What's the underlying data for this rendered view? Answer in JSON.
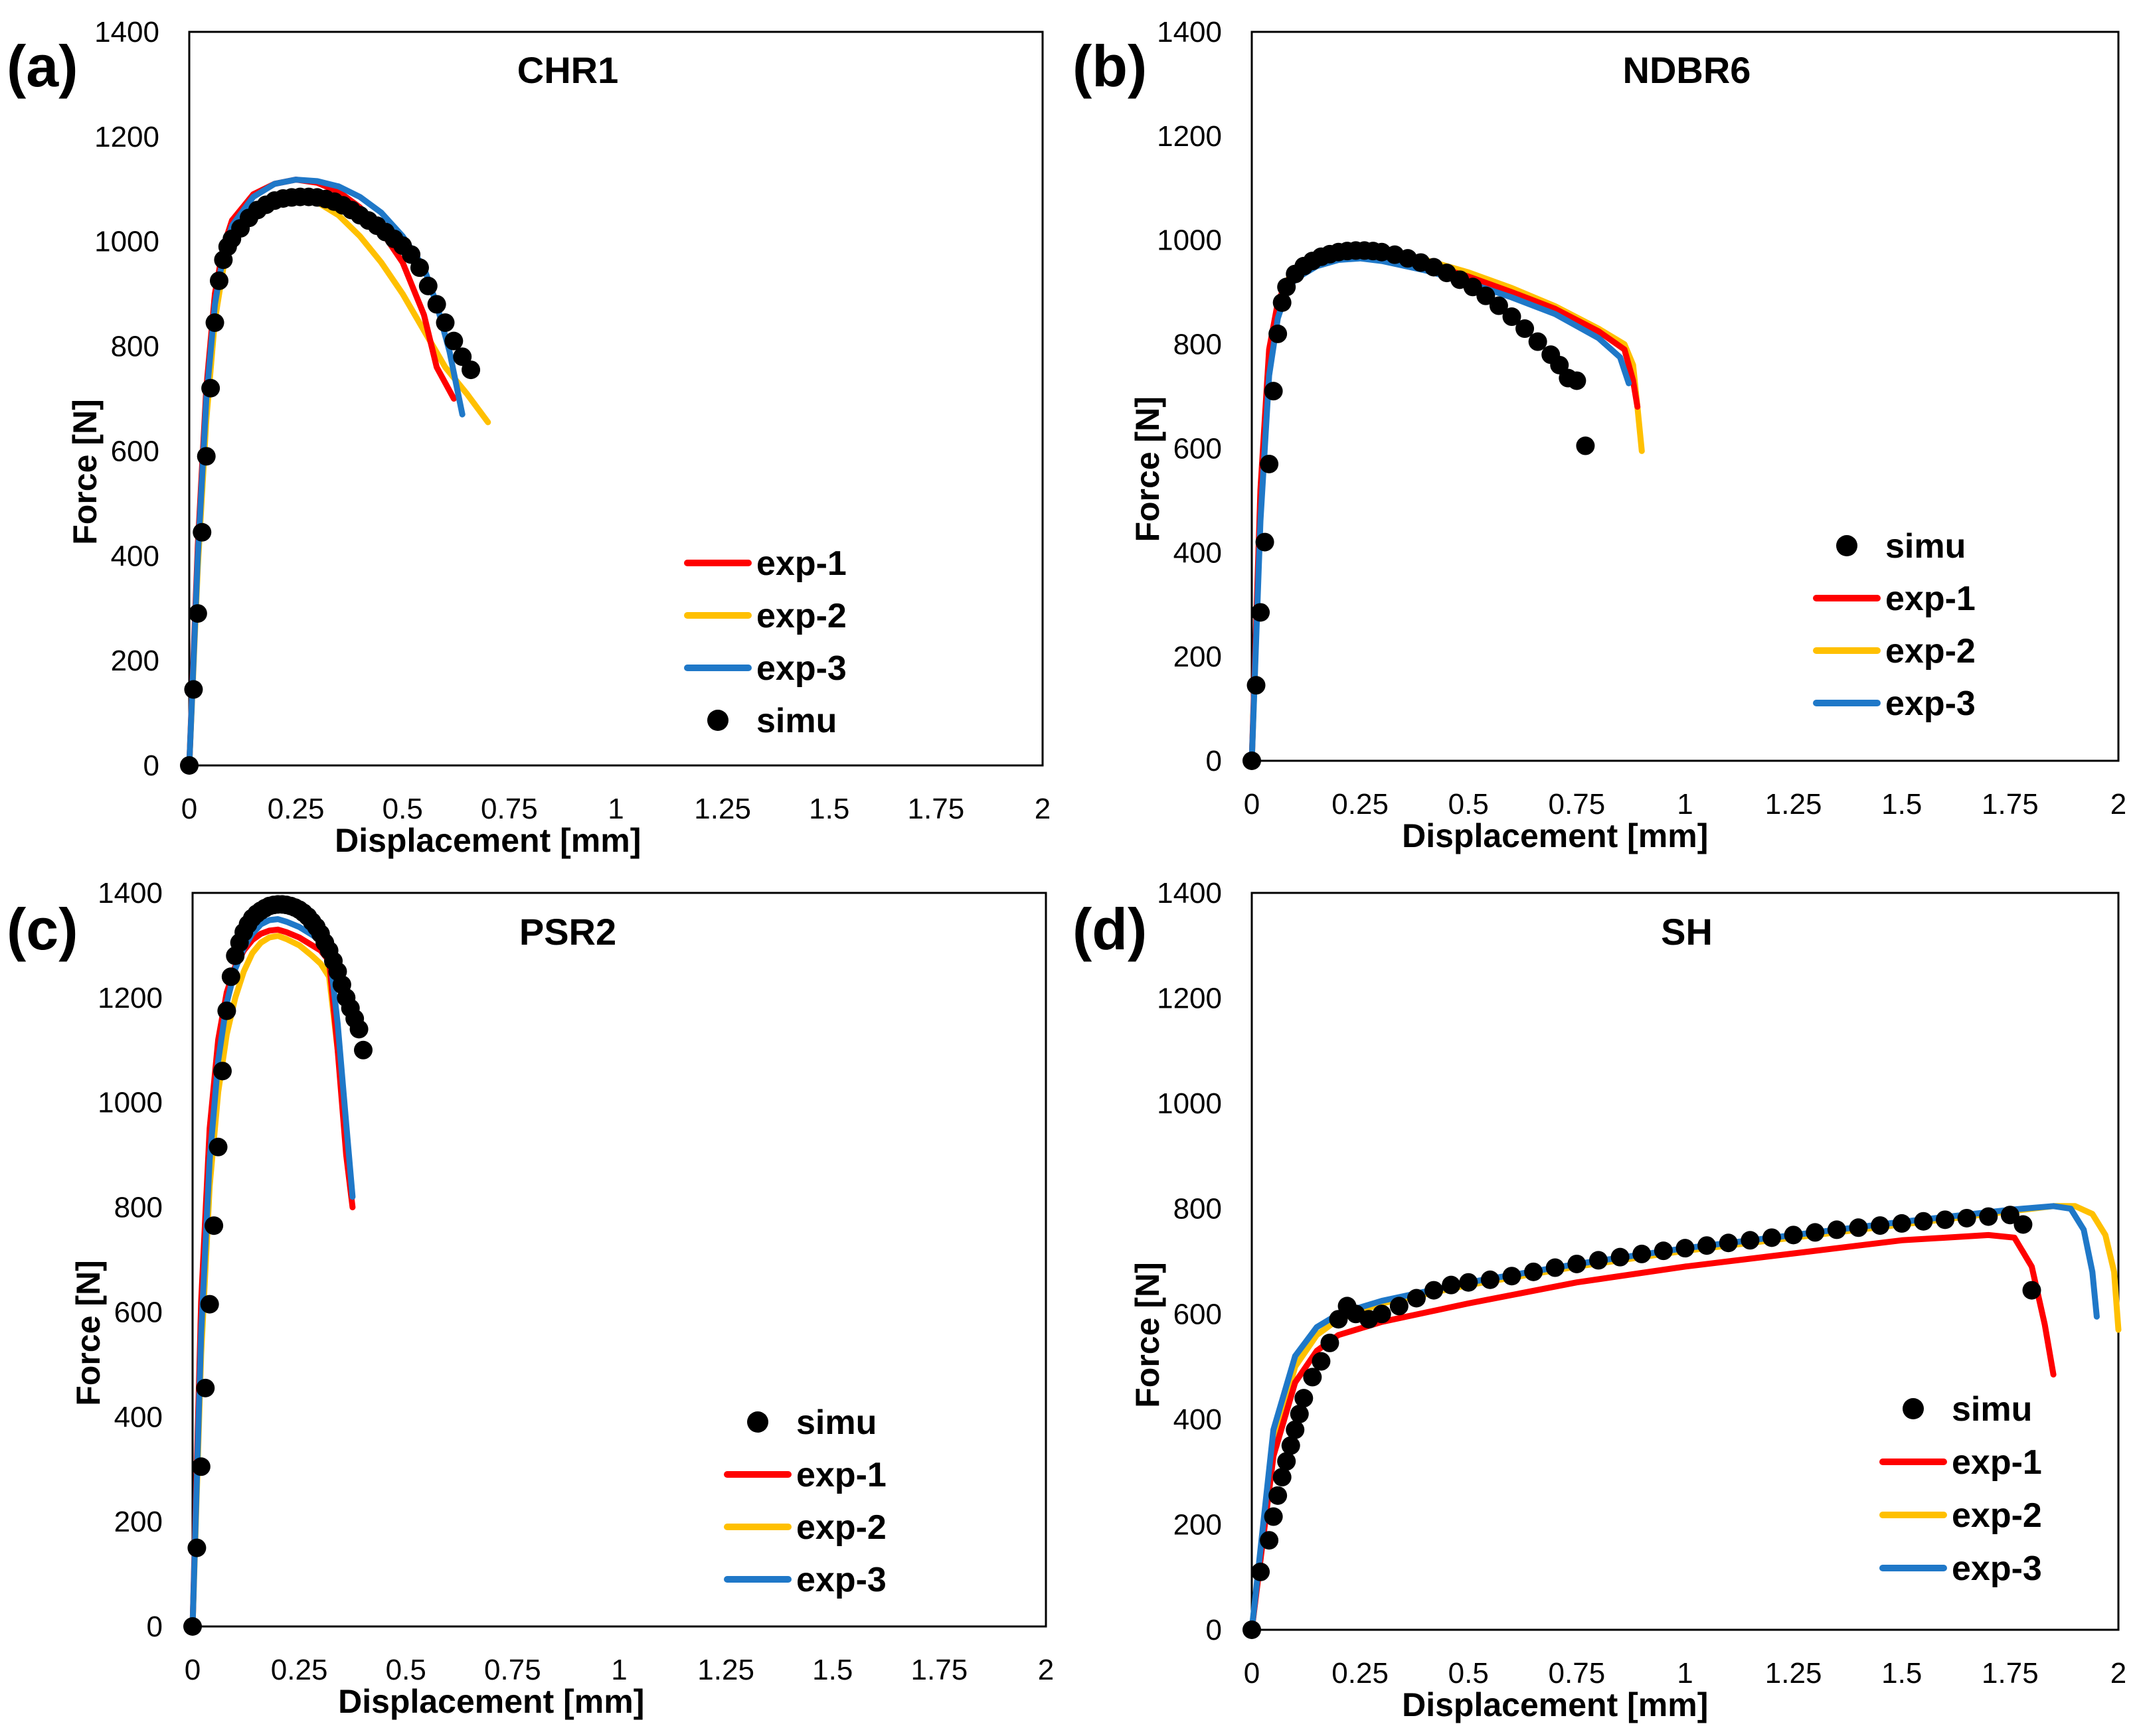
{
  "figure": {
    "series_colors": {
      "simu": "#000000",
      "exp-1": "#ff0000",
      "exp-2": "#ffc000",
      "exp-3": "#1f78c8"
    }
  },
  "chart_data": [
    {
      "panel_label": "(a)",
      "type": "scatter+line",
      "title": "CHR1",
      "xlabel": "Displacement [mm]",
      "ylabel": "Force [N]",
      "xlim": [
        0,
        2
      ],
      "ylim": [
        0,
        1400
      ],
      "xticks": [
        "0",
        "0.25",
        "0.5",
        "0.75",
        "1",
        "1.25",
        "1.5",
        "1.75",
        "2"
      ],
      "yticks": [
        "0",
        "200",
        "400",
        "600",
        "800",
        "1000",
        "1200",
        "1400"
      ],
      "legend_order": [
        "exp-1",
        "exp-2",
        "exp-3",
        "simu"
      ],
      "legend_position": "bottom-right",
      "series": [
        {
          "name": "exp-1",
          "kind": "line",
          "color": "#ff0000",
          "x": [
            0,
            0.02,
            0.04,
            0.06,
            0.08,
            0.1,
            0.15,
            0.2,
            0.25,
            0.3,
            0.35,
            0.4,
            0.45,
            0.5,
            0.55,
            0.58,
            0.62
          ],
          "y": [
            0,
            420,
            720,
            900,
            990,
            1040,
            1090,
            1110,
            1118,
            1112,
            1095,
            1065,
            1020,
            960,
            860,
            760,
            700
          ]
        },
        {
          "name": "exp-2",
          "kind": "line",
          "color": "#ffc000",
          "x": [
            0,
            0.02,
            0.04,
            0.06,
            0.08,
            0.1,
            0.15,
            0.2,
            0.25,
            0.3,
            0.35,
            0.4,
            0.45,
            0.5,
            0.55,
            0.6,
            0.65,
            0.7
          ],
          "y": [
            0,
            380,
            660,
            850,
            950,
            1010,
            1065,
            1085,
            1088,
            1075,
            1050,
            1010,
            960,
            900,
            830,
            760,
            710,
            655
          ]
        },
        {
          "name": "exp-3",
          "kind": "line",
          "color": "#1f78c8",
          "x": [
            0,
            0.02,
            0.04,
            0.06,
            0.08,
            0.1,
            0.15,
            0.2,
            0.25,
            0.3,
            0.35,
            0.4,
            0.45,
            0.5,
            0.55,
            0.58,
            0.61,
            0.64
          ],
          "y": [
            0,
            400,
            700,
            880,
            975,
            1030,
            1085,
            1110,
            1118,
            1115,
            1105,
            1085,
            1055,
            1010,
            950,
            880,
            790,
            670
          ]
        },
        {
          "name": "simu",
          "kind": "scatter",
          "color": "#000000",
          "x": [
            0,
            0.01,
            0.02,
            0.03,
            0.04,
            0.05,
            0.06,
            0.07,
            0.08,
            0.09,
            0.1,
            0.12,
            0.14,
            0.16,
            0.18,
            0.2,
            0.22,
            0.24,
            0.26,
            0.28,
            0.3,
            0.32,
            0.34,
            0.36,
            0.38,
            0.4,
            0.42,
            0.44,
            0.46,
            0.48,
            0.5,
            0.52,
            0.54,
            0.56,
            0.58,
            0.6,
            0.62,
            0.64,
            0.66
          ],
          "y": [
            0,
            145,
            290,
            445,
            590,
            720,
            845,
            925,
            965,
            990,
            1005,
            1025,
            1045,
            1060,
            1070,
            1078,
            1082,
            1084,
            1085,
            1085,
            1084,
            1081,
            1076,
            1069,
            1060,
            1050,
            1040,
            1030,
            1018,
            1005,
            992,
            975,
            950,
            915,
            880,
            845,
            810,
            780,
            755
          ]
        }
      ]
    },
    {
      "panel_label": "(b)",
      "type": "scatter+line",
      "title": "NDBR6",
      "xlabel": "Displacement [mm]",
      "ylabel": "Force [N]",
      "xlim": [
        0,
        2
      ],
      "ylim": [
        0,
        1400
      ],
      "xticks": [
        "0",
        "0.25",
        "0.5",
        "0.75",
        "1",
        "1.25",
        "1.5",
        "1.75",
        "2"
      ],
      "yticks": [
        "0",
        "200",
        "400",
        "600",
        "800",
        "1000",
        "1200",
        "1400"
      ],
      "legend_order": [
        "simu",
        "exp-1",
        "exp-2",
        "exp-3"
      ],
      "legend_position": "bottom-right",
      "series": [
        {
          "name": "exp-1",
          "kind": "line",
          "color": "#ff0000",
          "x": [
            0,
            0.02,
            0.04,
            0.06,
            0.08,
            0.1,
            0.15,
            0.2,
            0.25,
            0.3,
            0.4,
            0.5,
            0.6,
            0.7,
            0.8,
            0.86,
            0.88,
            0.89
          ],
          "y": [
            0,
            520,
            790,
            880,
            920,
            940,
            962,
            972,
            975,
            972,
            955,
            930,
            900,
            868,
            825,
            790,
            730,
            680
          ]
        },
        {
          "name": "exp-2",
          "kind": "line",
          "color": "#ffc000",
          "x": [
            0,
            0.02,
            0.04,
            0.06,
            0.08,
            0.1,
            0.15,
            0.2,
            0.25,
            0.3,
            0.4,
            0.5,
            0.6,
            0.7,
            0.8,
            0.86,
            0.88,
            0.89,
            0.9
          ],
          "y": [
            0,
            480,
            760,
            870,
            920,
            945,
            970,
            982,
            985,
            980,
            962,
            938,
            908,
            873,
            830,
            800,
            760,
            680,
            595
          ]
        },
        {
          "name": "exp-3",
          "kind": "line",
          "color": "#1f78c8",
          "x": [
            0,
            0.02,
            0.04,
            0.06,
            0.08,
            0.1,
            0.15,
            0.2,
            0.25,
            0.3,
            0.4,
            0.5,
            0.6,
            0.7,
            0.8,
            0.85,
            0.87
          ],
          "y": [
            0,
            460,
            740,
            850,
            900,
            925,
            950,
            962,
            965,
            960,
            942,
            918,
            890,
            858,
            812,
            775,
            725
          ]
        },
        {
          "name": "simu",
          "kind": "scatter",
          "color": "#000000",
          "x": [
            0,
            0.01,
            0.02,
            0.03,
            0.04,
            0.05,
            0.06,
            0.07,
            0.08,
            0.1,
            0.12,
            0.14,
            0.16,
            0.18,
            0.2,
            0.22,
            0.24,
            0.26,
            0.28,
            0.3,
            0.33,
            0.36,
            0.39,
            0.42,
            0.45,
            0.48,
            0.51,
            0.54,
            0.57,
            0.6,
            0.63,
            0.66,
            0.69,
            0.71,
            0.73,
            0.75,
            0.77
          ],
          "y": [
            0,
            145,
            285,
            420,
            570,
            710,
            820,
            880,
            910,
            935,
            950,
            960,
            968,
            973,
            977,
            979,
            980,
            980,
            979,
            977,
            972,
            965,
            957,
            948,
            937,
            924,
            910,
            893,
            874,
            853,
            830,
            805,
            780,
            760,
            735,
            730,
            605
          ]
        }
      ]
    },
    {
      "panel_label": "(c)",
      "type": "scatter+line",
      "title": "PSR2",
      "xlabel": "Displacement [mm]",
      "ylabel": "Force [N]",
      "xlim": [
        0,
        2
      ],
      "ylim": [
        0,
        1400
      ],
      "xticks": [
        "0",
        "0.25",
        "0.5",
        "0.75",
        "1",
        "1.25",
        "1.5",
        "1.75",
        "2"
      ],
      "yticks": [
        "0",
        "200",
        "400",
        "600",
        "800",
        "1000",
        "1200",
        "1400"
      ],
      "legend_order": [
        "simu",
        "exp-1",
        "exp-2",
        "exp-3"
      ],
      "legend_position": "bottom-right",
      "series": [
        {
          "name": "exp-1",
          "kind": "line",
          "color": "#ff0000",
          "x": [
            0,
            0.02,
            0.04,
            0.06,
            0.08,
            0.1,
            0.12,
            0.14,
            0.16,
            0.18,
            0.2,
            0.22,
            0.25,
            0.28,
            0.3,
            0.32,
            0.34,
            0.36,
            0.375
          ],
          "y": [
            0,
            620,
            950,
            1120,
            1210,
            1260,
            1290,
            1310,
            1322,
            1328,
            1330,
            1325,
            1315,
            1300,
            1290,
            1270,
            1100,
            900,
            800
          ]
        },
        {
          "name": "exp-2",
          "kind": "line",
          "color": "#ffc000",
          "x": [
            0,
            0.02,
            0.04,
            0.06,
            0.08,
            0.1,
            0.12,
            0.14,
            0.16,
            0.18,
            0.2,
            0.22,
            0.25,
            0.28,
            0.3,
            0.32,
            0.34,
            0.36,
            0.37
          ],
          "y": [
            0,
            520,
            840,
            1020,
            1130,
            1200,
            1250,
            1285,
            1305,
            1315,
            1318,
            1312,
            1300,
            1280,
            1265,
            1240,
            1100,
            950,
            850
          ]
        },
        {
          "name": "exp-3",
          "kind": "line",
          "color": "#1f78c8",
          "x": [
            0,
            0.02,
            0.04,
            0.06,
            0.08,
            0.1,
            0.12,
            0.14,
            0.16,
            0.18,
            0.2,
            0.22,
            0.25,
            0.28,
            0.3,
            0.32,
            0.34,
            0.36,
            0.375
          ],
          "y": [
            0,
            560,
            890,
            1080,
            1190,
            1255,
            1295,
            1322,
            1340,
            1348,
            1350,
            1345,
            1335,
            1320,
            1308,
            1295,
            1150,
            960,
            820
          ]
        },
        {
          "name": "simu",
          "kind": "scatter",
          "color": "#000000",
          "x": [
            0,
            0.01,
            0.02,
            0.03,
            0.04,
            0.05,
            0.06,
            0.07,
            0.08,
            0.09,
            0.1,
            0.11,
            0.12,
            0.13,
            0.14,
            0.15,
            0.16,
            0.17,
            0.18,
            0.19,
            0.2,
            0.21,
            0.22,
            0.23,
            0.24,
            0.25,
            0.26,
            0.27,
            0.28,
            0.29,
            0.3,
            0.31,
            0.32,
            0.33,
            0.34,
            0.35,
            0.36,
            0.37,
            0.38,
            0.39,
            0.4
          ],
          "y": [
            0,
            150,
            305,
            455,
            615,
            765,
            915,
            1060,
            1175,
            1240,
            1280,
            1305,
            1325,
            1340,
            1352,
            1360,
            1366,
            1371,
            1375,
            1377,
            1378,
            1378,
            1377,
            1375,
            1372,
            1368,
            1362,
            1355,
            1345,
            1335,
            1322,
            1305,
            1290,
            1270,
            1250,
            1225,
            1200,
            1180,
            1160,
            1140,
            1100
          ]
        }
      ]
    },
    {
      "panel_label": "(d)",
      "type": "scatter+line",
      "title": "SH",
      "xlabel": "Displacement [mm]",
      "ylabel": "Force [N]",
      "xlim": [
        0,
        2
      ],
      "ylim": [
        0,
        1400
      ],
      "xticks": [
        "0",
        "0.25",
        "0.5",
        "0.75",
        "1",
        "1.25",
        "1.5",
        "1.75",
        "2"
      ],
      "yticks": [
        "0",
        "200",
        "400",
        "600",
        "800",
        "1000",
        "1200",
        "1400"
      ],
      "legend_order": [
        "simu",
        "exp-1",
        "exp-2",
        "exp-3"
      ],
      "legend_position": "bottom-right",
      "series": [
        {
          "name": "exp-1",
          "kind": "line",
          "color": "#ff0000",
          "x": [
            0,
            0.05,
            0.1,
            0.15,
            0.2,
            0.3,
            0.5,
            0.75,
            1,
            1.25,
            1.5,
            1.7,
            1.76,
            1.8,
            1.83,
            1.85
          ],
          "y": [
            0,
            330,
            470,
            530,
            560,
            585,
            620,
            660,
            690,
            715,
            740,
            750,
            745,
            690,
            580,
            485
          ]
        },
        {
          "name": "exp-2",
          "kind": "line",
          "color": "#ffc000",
          "x": [
            0,
            0.05,
            0.1,
            0.15,
            0.2,
            0.3,
            0.5,
            0.75,
            1,
            1.25,
            1.5,
            1.75,
            1.85,
            1.9,
            1.94,
            1.97,
            1.99,
            2.0
          ],
          "y": [
            0,
            350,
            500,
            560,
            590,
            620,
            655,
            690,
            720,
            745,
            770,
            795,
            805,
            805,
            790,
            750,
            680,
            570
          ]
        },
        {
          "name": "exp-3",
          "kind": "line",
          "color": "#1f78c8",
          "x": [
            0,
            0.05,
            0.1,
            0.15,
            0.2,
            0.3,
            0.5,
            0.75,
            1,
            1.25,
            1.5,
            1.75,
            1.85,
            1.89,
            1.92,
            1.94,
            1.95
          ],
          "y": [
            0,
            380,
            520,
            575,
            600,
            625,
            660,
            695,
            725,
            750,
            775,
            798,
            805,
            800,
            760,
            680,
            595
          ]
        },
        {
          "name": "simu",
          "kind": "scatter",
          "color": "#000000",
          "x": [
            0,
            0.02,
            0.04,
            0.05,
            0.06,
            0.07,
            0.08,
            0.09,
            0.1,
            0.11,
            0.12,
            0.14,
            0.16,
            0.18,
            0.2,
            0.22,
            0.24,
            0.27,
            0.3,
            0.34,
            0.38,
            0.42,
            0.46,
            0.5,
            0.55,
            0.6,
            0.65,
            0.7,
            0.75,
            0.8,
            0.85,
            0.9,
            0.95,
            1.0,
            1.05,
            1.1,
            1.15,
            1.2,
            1.25,
            1.3,
            1.35,
            1.4,
            1.45,
            1.5,
            1.55,
            1.6,
            1.65,
            1.7,
            1.75,
            1.78,
            1.8
          ],
          "y": [
            0,
            110,
            170,
            215,
            255,
            290,
            320,
            350,
            380,
            410,
            440,
            480,
            510,
            545,
            590,
            615,
            600,
            590,
            600,
            615,
            630,
            645,
            655,
            660,
            665,
            672,
            680,
            688,
            695,
            702,
            708,
            714,
            720,
            725,
            730,
            735,
            740,
            745,
            750,
            755,
            760,
            764,
            768,
            772,
            776,
            779,
            782,
            785,
            788,
            770,
            645
          ]
        }
      ]
    }
  ]
}
